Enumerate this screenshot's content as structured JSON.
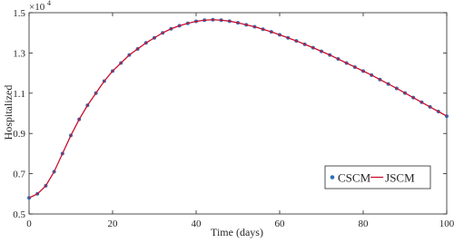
{
  "chart_data": {
    "type": "line",
    "xlabel": "Time (days)",
    "ylabel": "Hospitalized",
    "y_scale_base": "×10",
    "y_scale_exponent": "4",
    "xlim": [
      0,
      100
    ],
    "xticks": [
      0,
      20,
      40,
      60,
      80,
      100
    ],
    "ylim": [
      0.5,
      1.5
    ],
    "yticks": [
      0.5,
      0.7,
      0.9,
      1.1,
      1.3,
      1.5
    ],
    "legend_position": "lower right",
    "x": [
      0,
      2,
      4,
      6,
      8,
      10,
      12,
      14,
      16,
      18,
      20,
      22,
      24,
      26,
      28,
      30,
      32,
      34,
      36,
      38,
      40,
      42,
      44,
      46,
      48,
      50,
      52,
      54,
      56,
      58,
      60,
      62,
      64,
      66,
      68,
      70,
      72,
      74,
      76,
      78,
      80,
      82,
      84,
      86,
      88,
      90,
      92,
      94,
      96,
      98,
      100
    ],
    "series": [
      {
        "name": "CSCM",
        "color": "#2a6fb8",
        "style": "markers",
        "values": [
          0.58,
          0.6,
          0.64,
          0.71,
          0.8,
          0.89,
          0.97,
          1.04,
          1.1,
          1.16,
          1.21,
          1.25,
          1.29,
          1.32,
          1.35,
          1.375,
          1.4,
          1.42,
          1.435,
          1.447,
          1.457,
          1.463,
          1.465,
          1.463,
          1.458,
          1.45,
          1.44,
          1.43,
          1.418,
          1.405,
          1.39,
          1.375,
          1.36,
          1.343,
          1.326,
          1.308,
          1.29,
          1.27,
          1.25,
          1.23,
          1.21,
          1.19,
          1.168,
          1.146,
          1.124,
          1.101,
          1.078,
          1.055,
          1.032,
          1.009,
          0.986
        ]
      },
      {
        "name": "JSCM",
        "color": "#c8102e",
        "style": "line",
        "values": [
          0.58,
          0.6,
          0.64,
          0.71,
          0.8,
          0.89,
          0.97,
          1.04,
          1.1,
          1.16,
          1.21,
          1.25,
          1.29,
          1.32,
          1.35,
          1.375,
          1.4,
          1.42,
          1.435,
          1.447,
          1.457,
          1.463,
          1.465,
          1.463,
          1.458,
          1.45,
          1.44,
          1.43,
          1.418,
          1.405,
          1.39,
          1.375,
          1.36,
          1.343,
          1.326,
          1.308,
          1.29,
          1.27,
          1.25,
          1.23,
          1.21,
          1.19,
          1.168,
          1.146,
          1.124,
          1.101,
          1.078,
          1.055,
          1.032,
          1.009,
          0.986
        ]
      }
    ]
  }
}
